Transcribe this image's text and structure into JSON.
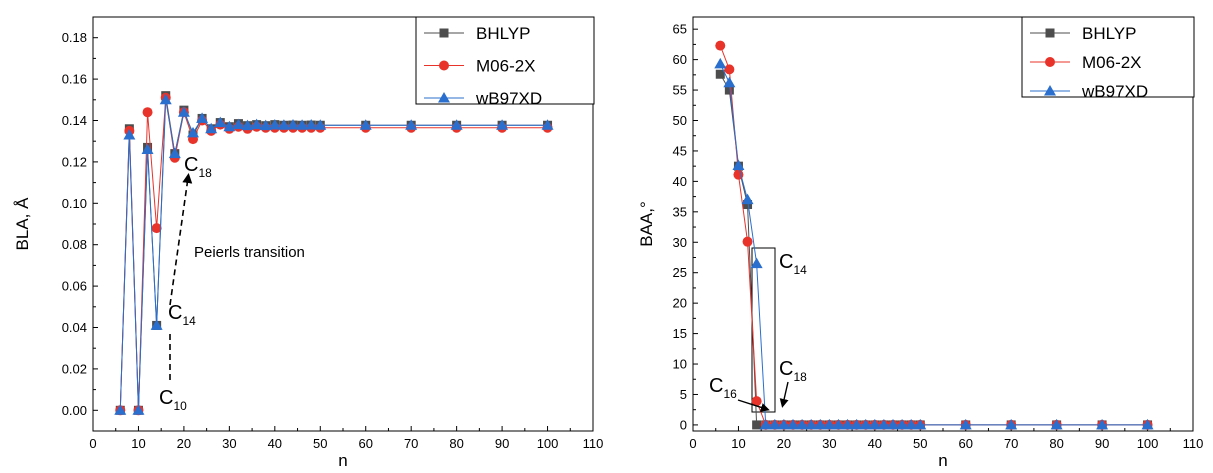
{
  "colors": {
    "BHLYP": "#4d4d4d",
    "M06-2X": "#e8332a",
    "wB97XD": "#2a6fce"
  },
  "chart_data": [
    {
      "type": "line",
      "xlabel": "n",
      "ylabel": "BLA, Å",
      "xlim": [
        0,
        110
      ],
      "ylim": [
        -0.01,
        0.19
      ],
      "x_ticks": [
        "0",
        "10",
        "20",
        "30",
        "40",
        "50",
        "60",
        "70",
        "80",
        "90",
        "100",
        "110"
      ],
      "y_ticks": [
        "0.00",
        "0.02",
        "0.04",
        "0.06",
        "0.08",
        "0.10",
        "0.12",
        "0.14",
        "0.16",
        "0.18"
      ],
      "legend_position": "top-right",
      "x": [
        6,
        8,
        10,
        12,
        14,
        16,
        18,
        20,
        22,
        24,
        26,
        28,
        30,
        32,
        34,
        36,
        38,
        40,
        42,
        44,
        46,
        48,
        50,
        60,
        70,
        80,
        90,
        100
      ],
      "series": [
        {
          "name": "BHLYP",
          "marker": "square",
          "values": [
            0.0,
            0.136,
            0.0,
            0.127,
            0.041,
            0.152,
            0.124,
            0.145,
            0.133,
            0.141,
            0.136,
            0.139,
            0.137,
            0.1385,
            0.1375,
            0.138,
            0.1375,
            0.138,
            0.1377,
            0.1378,
            0.1377,
            0.1378,
            0.1377,
            0.1377,
            0.1377,
            0.1377,
            0.1377,
            0.1377
          ]
        },
        {
          "name": "M06-2X",
          "marker": "circle",
          "values": [
            0.0,
            0.135,
            0.0,
            0.144,
            0.088,
            0.151,
            0.122,
            0.144,
            0.131,
            0.14,
            0.135,
            0.138,
            0.136,
            0.137,
            0.136,
            0.137,
            0.1365,
            0.1365,
            0.1365,
            0.1365,
            0.1365,
            0.1365,
            0.1365,
            0.1365,
            0.1365,
            0.1365,
            0.1365,
            0.1365
          ]
        },
        {
          "name": "wB97XD",
          "marker": "triangle",
          "values": [
            0.0,
            0.133,
            0.0,
            0.126,
            0.041,
            0.15,
            0.124,
            0.144,
            0.134,
            0.141,
            0.136,
            0.139,
            0.137,
            0.138,
            0.1375,
            0.138,
            0.1375,
            0.1378,
            0.1377,
            0.1378,
            0.1377,
            0.1378,
            0.1377,
            0.1377,
            0.1377,
            0.1377,
            0.1377,
            0.1377
          ]
        }
      ],
      "annotations": {
        "c18": {
          "base": "C",
          "sub": "18",
          "n": 18
        },
        "c14": {
          "base": "C",
          "sub": "14",
          "n": 14
        },
        "c10": {
          "base": "C",
          "sub": "10",
          "n": 10
        },
        "transition": "Peierls  transition"
      }
    },
    {
      "type": "line",
      "xlabel": "n",
      "ylabel": "BAA,°",
      "xlim": [
        0,
        110
      ],
      "ylim": [
        -1,
        67
      ],
      "x_ticks": [
        "0",
        "10",
        "20",
        "30",
        "40",
        "50",
        "60",
        "70",
        "80",
        "90",
        "100",
        "110"
      ],
      "y_ticks": [
        "0",
        "5",
        "10",
        "15",
        "20",
        "25",
        "30",
        "35",
        "40",
        "45",
        "50",
        "55",
        "60",
        "65"
      ],
      "legend_position": "top-right",
      "x": [
        6,
        8,
        10,
        12,
        14,
        16,
        18,
        20,
        22,
        24,
        26,
        28,
        30,
        32,
        34,
        36,
        38,
        40,
        42,
        44,
        46,
        48,
        50,
        60,
        70,
        80,
        90,
        100
      ],
      "series": [
        {
          "name": "BHLYP",
          "marker": "square",
          "values": [
            57.6,
            55.0,
            42.5,
            36.2,
            0.0,
            0,
            0,
            0,
            0,
            0,
            0,
            0,
            0,
            0,
            0,
            0,
            0,
            0,
            0,
            0,
            0,
            0,
            0,
            0,
            0,
            0,
            0,
            0
          ]
        },
        {
          "name": "M06-2X",
          "marker": "circle",
          "values": [
            62.3,
            58.4,
            41.1,
            30.1,
            3.9,
            0,
            0,
            0,
            0,
            0,
            0,
            0,
            0,
            0,
            0,
            0,
            0,
            0,
            0,
            0,
            0,
            0,
            0,
            0,
            0,
            0,
            0,
            0
          ]
        },
        {
          "name": "wB97XD",
          "marker": "triangle",
          "values": [
            59.3,
            56.2,
            42.6,
            37.0,
            26.5,
            0,
            0,
            0,
            0,
            0,
            0,
            0,
            0,
            0,
            0,
            0,
            0,
            0,
            0,
            0,
            0,
            0,
            0,
            0,
            0,
            0,
            0,
            0
          ]
        }
      ],
      "annotations": {
        "c14": {
          "base": "C",
          "sub": "14",
          "n": 14
        },
        "c18": {
          "base": "C",
          "sub": "18",
          "n": 18
        },
        "c16": {
          "base": "C",
          "sub": "16",
          "n": 16
        }
      }
    }
  ]
}
